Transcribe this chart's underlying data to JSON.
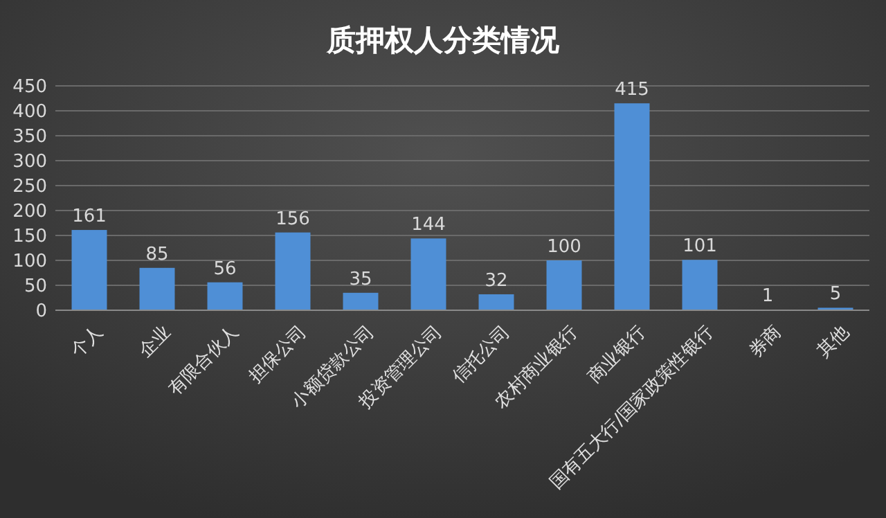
{
  "chart_data": {
    "type": "bar",
    "title": "质押权人分类情况",
    "categories": [
      "个人",
      "企业",
      "有限合伙人",
      "担保公司",
      "小额贷款公司",
      "投资管理公司",
      "信托公司",
      "农村商业银行",
      "商业银行",
      "国有五大行/国家政策性银行",
      "券商",
      "其他"
    ],
    "values": [
      161,
      85,
      56,
      156,
      35,
      144,
      32,
      100,
      415,
      101,
      1,
      5
    ],
    "color": "#4f8fd6",
    "ylim": [
      0,
      450
    ],
    "yticks": [
      0,
      50,
      100,
      150,
      200,
      250,
      300,
      350,
      400,
      450
    ],
    "grid": "y",
    "data_labels": true
  }
}
